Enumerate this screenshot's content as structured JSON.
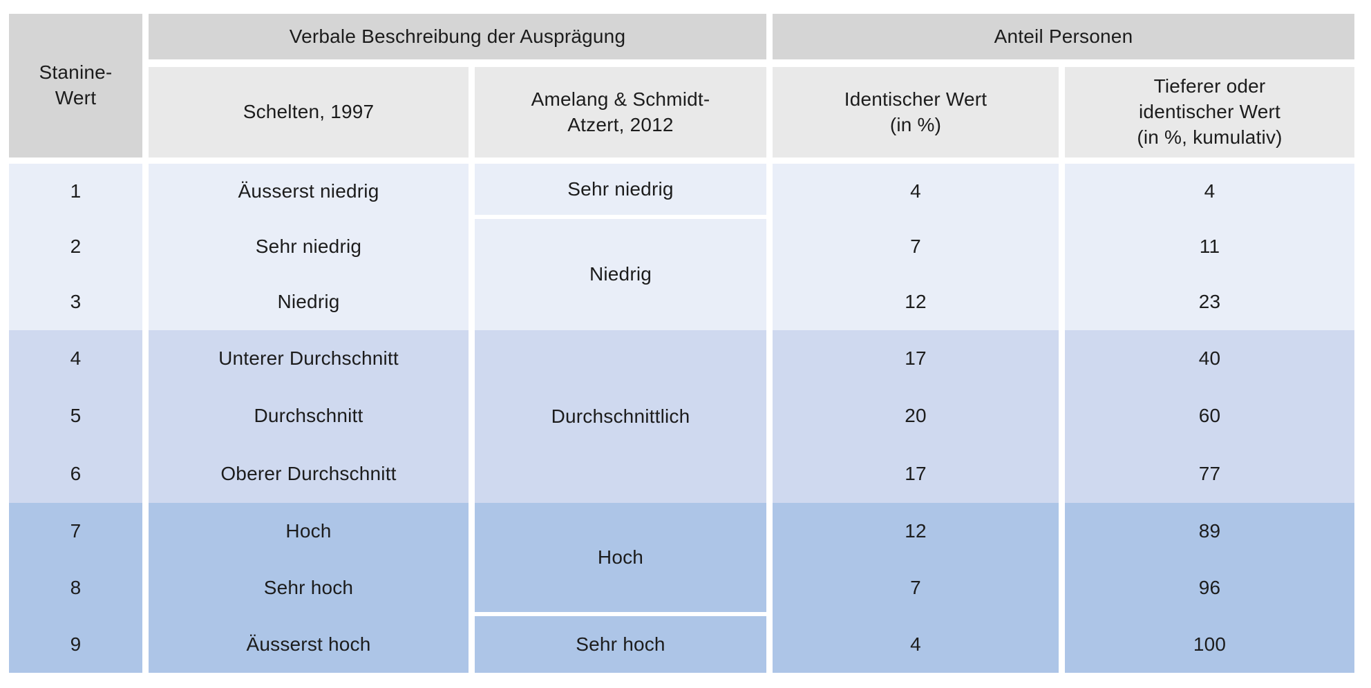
{
  "table": {
    "header": {
      "stanine": "Stanine-\nWert",
      "group_verbal": "Verbale Beschreibung der Ausprägung",
      "group_anteil": "Anteil Personen",
      "schelten": "Schelten, 1997",
      "amelang": "Amelang & Schmidt-\nAtzert, 2012",
      "identical": "Identischer Wert\n(in %)",
      "cumulative": "Tieferer oder\nidentischer Wert\n(in %, kumulativ)"
    },
    "rows": [
      {
        "stanine": "1",
        "schelten": "Äusserst niedrig",
        "identical": "4",
        "cumulative": "4"
      },
      {
        "stanine": "2",
        "schelten": "Sehr niedrig",
        "identical": "7",
        "cumulative": "11"
      },
      {
        "stanine": "3",
        "schelten": "Niedrig",
        "identical": "12",
        "cumulative": "23"
      },
      {
        "stanine": "4",
        "schelten": "Unterer Durchschnitt",
        "identical": "17",
        "cumulative": "40"
      },
      {
        "stanine": "5",
        "schelten": "Durchschnitt",
        "identical": "20",
        "cumulative": "60"
      },
      {
        "stanine": "6",
        "schelten": "Oberer Durchschnitt",
        "identical": "17",
        "cumulative": "77"
      },
      {
        "stanine": "7",
        "schelten": "Hoch",
        "identical": "12",
        "cumulative": "89"
      },
      {
        "stanine": "8",
        "schelten": "Sehr hoch",
        "identical": "7",
        "cumulative": "96"
      },
      {
        "stanine": "9",
        "schelten": "Äusserst hoch",
        "identical": "4",
        "cumulative": "100"
      }
    ],
    "amelang_cells": {
      "c1": "Sehr niedrig",
      "c2": "Niedrig",
      "c3": "Durchschnittlich",
      "c4": "Hoch",
      "c5": "Sehr hoch"
    },
    "colors": {
      "header_dark": "#d5d5d5",
      "header_light": "#e9e9e9",
      "band_low": "#e9eef8",
      "band_mid": "#cfd9ef",
      "band_high": "#adc5e7",
      "text": "#1c1c1c"
    }
  },
  "chart_data": {
    "type": "table",
    "title": "",
    "column_groups": [
      "",
      "Verbale Beschreibung der Ausprägung",
      "Anteil Personen"
    ],
    "columns": [
      "Stanine-Wert",
      "Schelten, 1997",
      "Amelang & Schmidt-Atzert, 2012",
      "Identischer Wert (in %)",
      "Tieferer oder identischer Wert (in %, kumulativ)"
    ],
    "rows": [
      [
        1,
        "Äusserst niedrig",
        "Sehr niedrig",
        4,
        4
      ],
      [
        2,
        "Sehr niedrig",
        "Niedrig",
        7,
        11
      ],
      [
        3,
        "Niedrig",
        "Niedrig",
        12,
        23
      ],
      [
        4,
        "Unterer Durchschnitt",
        "Durchschnittlich",
        17,
        40
      ],
      [
        5,
        "Durchschnitt",
        "Durchschnittlich",
        20,
        60
      ],
      [
        6,
        "Oberer Durchschnitt",
        "Durchschnittlich",
        17,
        77
      ],
      [
        7,
        "Hoch",
        "Hoch",
        12,
        89
      ],
      [
        8,
        "Sehr hoch",
        "Hoch",
        7,
        96
      ],
      [
        9,
        "Äusserst hoch",
        "Sehr hoch",
        4,
        100
      ]
    ],
    "merged_cells": [
      {
        "column": "Amelang & Schmidt-Atzert, 2012",
        "label": "Sehr niedrig",
        "stanine_range": [
          1,
          1
        ]
      },
      {
        "column": "Amelang & Schmidt-Atzert, 2012",
        "label": "Niedrig",
        "stanine_range": [
          2,
          3
        ]
      },
      {
        "column": "Amelang & Schmidt-Atzert, 2012",
        "label": "Durchschnittlich",
        "stanine_range": [
          4,
          6
        ]
      },
      {
        "column": "Amelang & Schmidt-Atzert, 2012",
        "label": "Hoch",
        "stanine_range": [
          7,
          8
        ]
      },
      {
        "column": "Amelang & Schmidt-Atzert, 2012",
        "label": "Sehr hoch",
        "stanine_range": [
          9,
          9
        ]
      }
    ],
    "row_bands": [
      {
        "stanine_range": [
          1,
          3
        ],
        "color": "#e9eef8"
      },
      {
        "stanine_range": [
          4,
          6
        ],
        "color": "#cfd9ef"
      },
      {
        "stanine_range": [
          7,
          9
        ],
        "color": "#adc5e7"
      }
    ]
  }
}
